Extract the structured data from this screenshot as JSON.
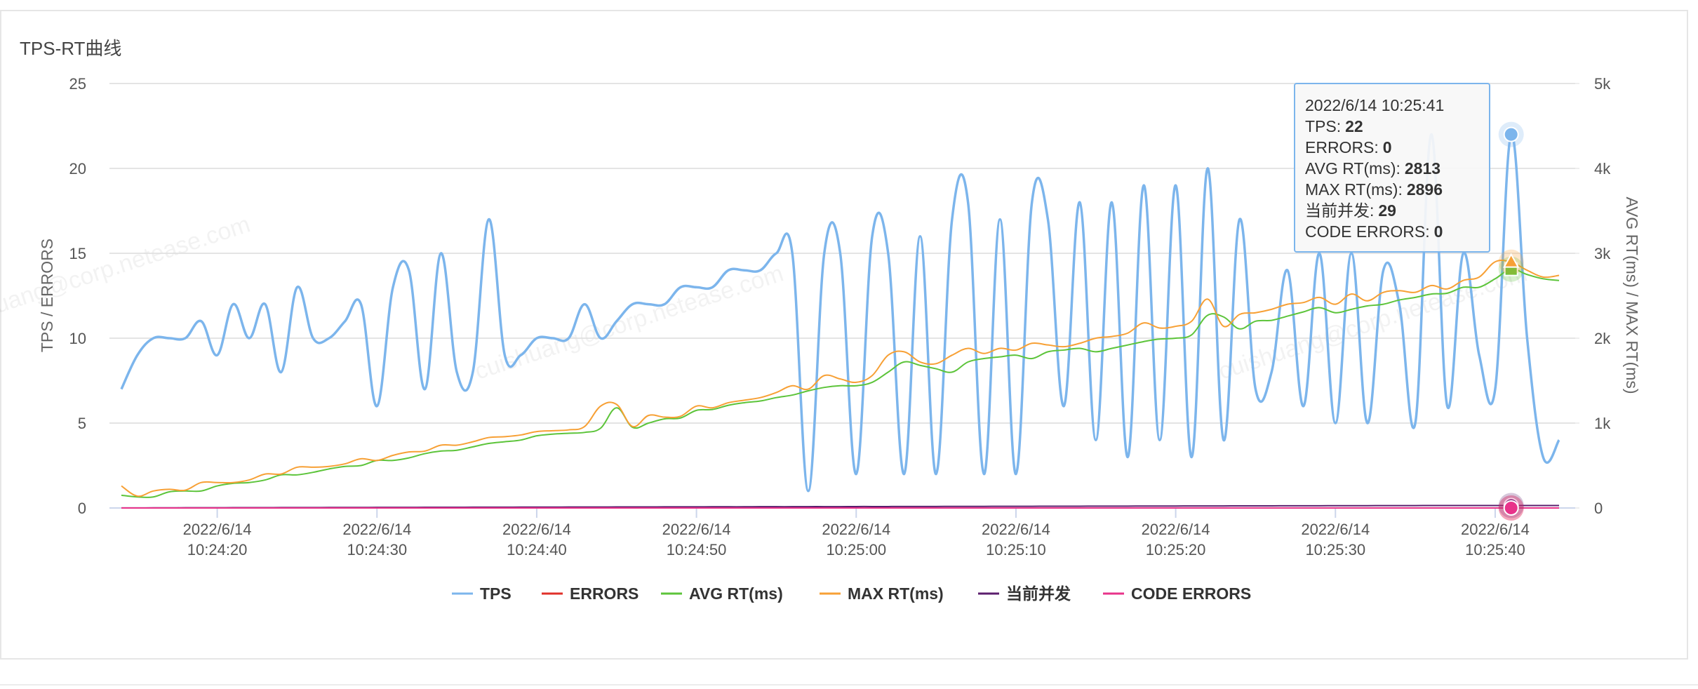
{
  "chart_data": {
    "type": "line",
    "title": "TPS-RT曲线",
    "watermark": "cuishuang@corp.netease.com",
    "ylabel": "TPS / ERRORS",
    "y2label": "AVG RT(ms) / MAX RT(ms)",
    "x": [
      "2022/6/14 10:24:14",
      "2022/6/14 10:24:15",
      "2022/6/14 10:24:16",
      "2022/6/14 10:24:17",
      "2022/6/14 10:24:18",
      "2022/6/14 10:24:19",
      "2022/6/14 10:24:20",
      "2022/6/14 10:24:21",
      "2022/6/14 10:24:22",
      "2022/6/14 10:24:23",
      "2022/6/14 10:24:24",
      "2022/6/14 10:24:25",
      "2022/6/14 10:24:26",
      "2022/6/14 10:24:27",
      "2022/6/14 10:24:28",
      "2022/6/14 10:24:29",
      "2022/6/14 10:24:30",
      "2022/6/14 10:24:31",
      "2022/6/14 10:24:32",
      "2022/6/14 10:24:33",
      "2022/6/14 10:24:34",
      "2022/6/14 10:24:35",
      "2022/6/14 10:24:36",
      "2022/6/14 10:24:37",
      "2022/6/14 10:24:38",
      "2022/6/14 10:24:39",
      "2022/6/14 10:24:40",
      "2022/6/14 10:24:41",
      "2022/6/14 10:24:42",
      "2022/6/14 10:24:43",
      "2022/6/14 10:24:44",
      "2022/6/14 10:24:45",
      "2022/6/14 10:24:46",
      "2022/6/14 10:24:47",
      "2022/6/14 10:24:48",
      "2022/6/14 10:24:49",
      "2022/6/14 10:24:50",
      "2022/6/14 10:24:51",
      "2022/6/14 10:24:52",
      "2022/6/14 10:24:53",
      "2022/6/14 10:24:54",
      "2022/6/14 10:24:55",
      "2022/6/14 10:24:56",
      "2022/6/14 10:24:57",
      "2022/6/14 10:24:58",
      "2022/6/14 10:24:59",
      "2022/6/14 10:25:00",
      "2022/6/14 10:25:01",
      "2022/6/14 10:25:02",
      "2022/6/14 10:25:03",
      "2022/6/14 10:25:04",
      "2022/6/14 10:25:05",
      "2022/6/14 10:25:06",
      "2022/6/14 10:25:07",
      "2022/6/14 10:25:08",
      "2022/6/14 10:25:09",
      "2022/6/14 10:25:10",
      "2022/6/14 10:25:11",
      "2022/6/14 10:25:12",
      "2022/6/14 10:25:13",
      "2022/6/14 10:25:14",
      "2022/6/14 10:25:15",
      "2022/6/14 10:25:16",
      "2022/6/14 10:25:17",
      "2022/6/14 10:25:18",
      "2022/6/14 10:25:19",
      "2022/6/14 10:25:20",
      "2022/6/14 10:25:21",
      "2022/6/14 10:25:22",
      "2022/6/14 10:25:23",
      "2022/6/14 10:25:24",
      "2022/6/14 10:25:25",
      "2022/6/14 10:25:26",
      "2022/6/14 10:25:27",
      "2022/6/14 10:25:28",
      "2022/6/14 10:25:29",
      "2022/6/14 10:25:30",
      "2022/6/14 10:25:31",
      "2022/6/14 10:25:32",
      "2022/6/14 10:25:33",
      "2022/6/14 10:25:34",
      "2022/6/14 10:25:35",
      "2022/6/14 10:25:36",
      "2022/6/14 10:25:37",
      "2022/6/14 10:25:38",
      "2022/6/14 10:25:39",
      "2022/6/14 10:25:40",
      "2022/6/14 10:25:41",
      "2022/6/14 10:25:42",
      "2022/6/14 10:25:43",
      "2022/6/14 10:25:44"
    ],
    "xticks": [
      "2022/6/14 10:24:20",
      "2022/6/14 10:24:30",
      "2022/6/14 10:24:40",
      "2022/6/14 10:24:50",
      "2022/6/14 10:25:00",
      "2022/6/14 10:25:10",
      "2022/6/14 10:25:20",
      "2022/6/14 10:25:30",
      "2022/6/14 10:25:40"
    ],
    "ylim": [
      0,
      25
    ],
    "yticks": [
      0,
      5,
      10,
      15,
      20,
      25
    ],
    "y2lim": [
      0,
      5000
    ],
    "y2ticks": [
      0,
      {
        "value": 1000,
        "label": "1k"
      },
      {
        "value": 2000,
        "label": "2k"
      },
      {
        "value": 3000,
        "label": "3k"
      },
      {
        "value": 4000,
        "label": "4k"
      },
      {
        "value": 5000,
        "label": "5k"
      }
    ],
    "grid": true,
    "legend": "bottom",
    "series": [
      {
        "name": "TPS",
        "color": "#7cb5ec",
        "values": [
          7,
          9,
          10,
          10,
          10,
          11,
          9,
          12,
          10,
          12,
          8,
          13,
          10,
          10,
          11,
          12,
          6,
          13,
          14,
          7,
          15,
          8,
          8,
          17,
          9,
          9,
          10,
          10,
          10,
          12,
          10,
          11,
          12,
          12,
          12,
          13,
          13,
          13,
          14,
          14,
          14,
          15,
          15,
          1,
          15,
          15,
          2,
          16,
          15,
          2,
          16,
          2,
          17,
          18,
          2,
          17,
          2,
          18,
          17,
          6,
          18,
          4,
          18,
          3,
          19,
          4,
          19,
          3,
          20,
          4,
          17,
          7,
          8,
          14,
          6,
          15,
          5,
          15,
          5,
          14,
          12,
          5,
          22,
          6,
          15,
          9,
          7,
          22,
          10,
          3,
          4
        ]
      },
      {
        "name": "ERRORS",
        "color": "#e0302a",
        "values": [
          0,
          0,
          0,
          0,
          0,
          0,
          0,
          0,
          0,
          0,
          0,
          0,
          0,
          0,
          0,
          0,
          0,
          0,
          0,
          0,
          0,
          0,
          0,
          0,
          0,
          0,
          0,
          0,
          0,
          0,
          0,
          0,
          0,
          0,
          0,
          0,
          0,
          0,
          0,
          0,
          0,
          0,
          0,
          0,
          0,
          0,
          0,
          0,
          0,
          0,
          0,
          0,
          0,
          0,
          0,
          0,
          0,
          0,
          0,
          0,
          0,
          0,
          0,
          0,
          0,
          0,
          0,
          0,
          0,
          0,
          0,
          0,
          0,
          0,
          0,
          0,
          0,
          0,
          0,
          0,
          0,
          0,
          0,
          0,
          0,
          0,
          0,
          0,
          0,
          0,
          0
        ]
      },
      {
        "name": "AVG RT(ms)",
        "color": "#5cc43a",
        "axis": "y2",
        "values": [
          150,
          130,
          130,
          190,
          200,
          200,
          260,
          290,
          300,
          330,
          390,
          390,
          420,
          460,
          490,
          500,
          560,
          560,
          590,
          640,
          670,
          680,
          720,
          760,
          780,
          800,
          850,
          870,
          880,
          890,
          940,
          1180,
          950,
          1000,
          1050,
          1060,
          1150,
          1160,
          1210,
          1240,
          1260,
          1300,
          1330,
          1380,
          1420,
          1440,
          1440,
          1480,
          1600,
          1720,
          1680,
          1640,
          1600,
          1720,
          1760,
          1780,
          1800,
          1760,
          1840,
          1860,
          1880,
          1840,
          1880,
          1920,
          1960,
          1990,
          2000,
          2040,
          2270,
          2250,
          2110,
          2200,
          2210,
          2260,
          2310,
          2360,
          2300,
          2340,
          2380,
          2400,
          2450,
          2480,
          2520,
          2530,
          2600,
          2600,
          2700,
          2813,
          2750,
          2700,
          2680
        ]
      },
      {
        "name": "MAX RT(ms)",
        "color": "#f7a035",
        "axis": "y2",
        "values": [
          260,
          140,
          200,
          220,
          210,
          300,
          300,
          300,
          330,
          400,
          400,
          480,
          480,
          490,
          520,
          580,
          560,
          620,
          660,
          670,
          740,
          740,
          780,
          830,
          840,
          860,
          900,
          910,
          920,
          960,
          1200,
          1220,
          960,
          1090,
          1070,
          1080,
          1200,
          1180,
          1240,
          1270,
          1300,
          1360,
          1440,
          1400,
          1560,
          1520,
          1480,
          1560,
          1800,
          1840,
          1720,
          1700,
          1800,
          1880,
          1820,
          1880,
          1860,
          1940,
          1920,
          1900,
          1940,
          2000,
          2020,
          2060,
          2180,
          2120,
          2140,
          2200,
          2460,
          2140,
          2280,
          2300,
          2340,
          2400,
          2420,
          2480,
          2400,
          2520,
          2440,
          2540,
          2560,
          2540,
          2620,
          2580,
          2680,
          2720,
          2900,
          2896,
          2800,
          2720,
          2740
        ]
      },
      {
        "name": "当前并发",
        "color": "#5b1e6e",
        "axis": "y2",
        "values": [
          1,
          1,
          2,
          2,
          3,
          3,
          3,
          4,
          4,
          4,
          5,
          5,
          5,
          6,
          6,
          6,
          7,
          7,
          7,
          8,
          8,
          8,
          9,
          9,
          9,
          10,
          10,
          10,
          11,
          11,
          11,
          12,
          12,
          12,
          13,
          13,
          13,
          14,
          14,
          14,
          15,
          15,
          15,
          16,
          16,
          16,
          17,
          17,
          17,
          18,
          18,
          18,
          19,
          19,
          19,
          20,
          20,
          20,
          21,
          21,
          21,
          22,
          22,
          22,
          23,
          23,
          23,
          24,
          24,
          24,
          25,
          25,
          25,
          26,
          26,
          26,
          27,
          27,
          27,
          28,
          28,
          28,
          29,
          29,
          29,
          29,
          29,
          29,
          29,
          29,
          29
        ]
      },
      {
        "name": "CODE ERRORS",
        "color": "#e8338a",
        "values": [
          0,
          0,
          0,
          0,
          0,
          0,
          0,
          0,
          0,
          0,
          0,
          0,
          0,
          0,
          0,
          0,
          0,
          0,
          0,
          0,
          0,
          0,
          0,
          0,
          0,
          0,
          0,
          0,
          0,
          0,
          0,
          0,
          0,
          0,
          0,
          0,
          0,
          0,
          0,
          0,
          0,
          0,
          0,
          0,
          0,
          0,
          0,
          0,
          0,
          0,
          0,
          0,
          0,
          0,
          0,
          0,
          0,
          0,
          0,
          0,
          0,
          0,
          0,
          0,
          0,
          0,
          0,
          0,
          0,
          0,
          0,
          0,
          0,
          0,
          0,
          0,
          0,
          0,
          0,
          0,
          0,
          0,
          0,
          0,
          0,
          0,
          0,
          0,
          0,
          0,
          0
        ]
      }
    ],
    "tooltip": {
      "title": "2022/6/14 10:25:41",
      "items": [
        {
          "label": "TPS:",
          "value": 22
        },
        {
          "label": "ERRORS:",
          "value": 0
        },
        {
          "label": "AVG RT(ms):",
          "value": 2813
        },
        {
          "label": "MAX RT(ms):",
          "value": 2896
        },
        {
          "label": "当前并发:",
          "value": 29
        },
        {
          "label": "CODE ERRORS:",
          "value": 0
        }
      ]
    }
  }
}
